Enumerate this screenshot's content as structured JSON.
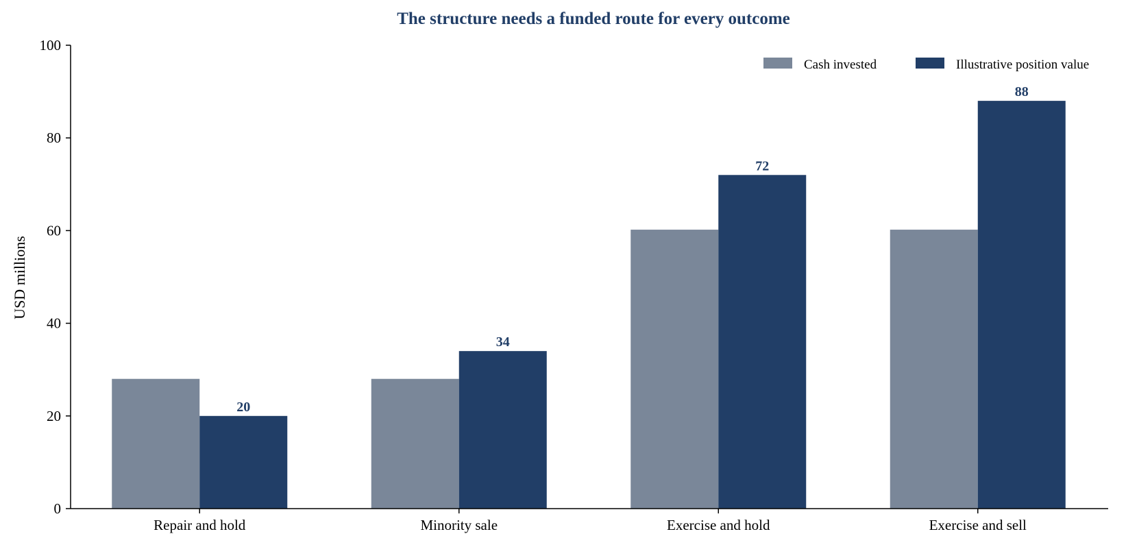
{
  "chart_data": {
    "type": "bar",
    "title": "The structure needs a funded route for every outcome",
    "xlabel": "",
    "ylabel": "USD millions",
    "ylim": [
      0,
      100
    ],
    "yticks": [
      "0",
      "20",
      "40",
      "60",
      "80",
      "100"
    ],
    "categories": [
      "Repair and hold",
      "Minority sale",
      "Exercise and hold",
      "Exercise and sell"
    ],
    "series": [
      {
        "name": "Cash invested",
        "values": [
          28,
          28,
          60.2,
          60.2
        ],
        "color": "#7a8799",
        "labeled": false
      },
      {
        "name": "Illustrative position value",
        "values": [
          20,
          34,
          72,
          88
        ],
        "color": "#213e67",
        "labeled": true
      }
    ],
    "data_labels": [
      "20",
      "34",
      "72",
      "88"
    ],
    "legend": "top-right",
    "grid": false,
    "title_color": "#213e67"
  }
}
